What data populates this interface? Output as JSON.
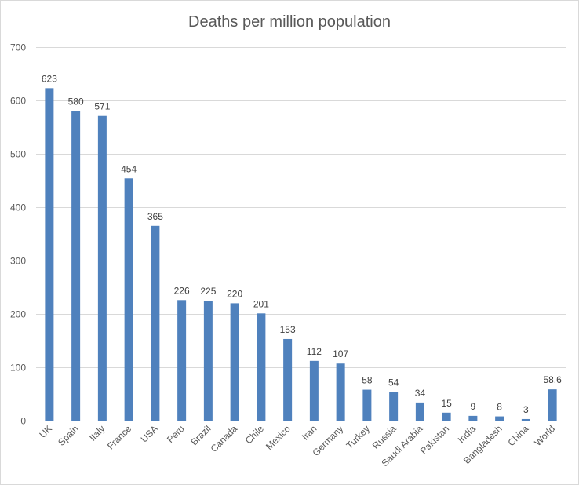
{
  "chart_data": {
    "type": "bar",
    "title": "Deaths per million population",
    "xlabel": "",
    "ylabel": "",
    "categories": [
      "UK",
      "Spain",
      "Italy",
      "France",
      "USA",
      "Peru",
      "Brazil",
      "Canada",
      "Chile",
      "Mexico",
      "Iran",
      "Germany",
      "Turkey",
      "Russia",
      "Saudi Arabia",
      "Pakistan",
      "India",
      "Bangladesh",
      "China",
      "World"
    ],
    "values": [
      623,
      580,
      571,
      454,
      365,
      226,
      225,
      220,
      201,
      153,
      112,
      107,
      58,
      54,
      34,
      15,
      9,
      8,
      3,
      58.6
    ],
    "data_labels": [
      "623",
      "580",
      "571",
      "454",
      "365",
      "226",
      "225",
      "220",
      "201",
      "153",
      "112",
      "107",
      "58",
      "54",
      "34",
      "15",
      "9",
      "8",
      "3",
      "58.6"
    ],
    "ylim": [
      0,
      700
    ],
    "y_ticks": [
      0,
      100,
      200,
      300,
      400,
      500,
      600,
      700
    ],
    "grid": true,
    "legend": "none",
    "bar_color": "#4f81bd"
  }
}
